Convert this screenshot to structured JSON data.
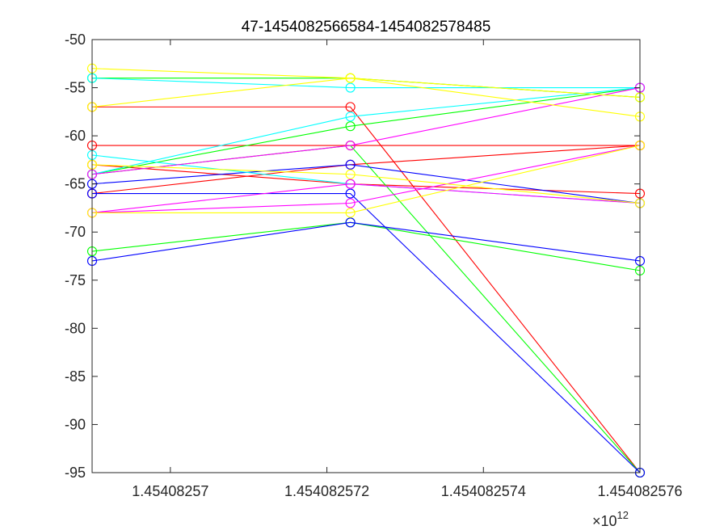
{
  "chart_data": {
    "type": "line",
    "title": "47-1454082566584-1454082578485",
    "xlabel": "",
    "ylabel": "",
    "x_exponent_label": "×10",
    "x_exponent_power": "12",
    "x_tick_values": [
      1.45408257,
      1.454082572,
      1.454082574,
      1.454082576
    ],
    "x_tick_labels": [
      "1.45408257",
      "1.454082572",
      "1.454082574",
      "1.454082576"
    ],
    "xlim": [
      1.454082569,
      1.454082576
    ],
    "y_tick_values": [
      -50,
      -55,
      -60,
      -65,
      -70,
      -75,
      -80,
      -85,
      -90,
      -95
    ],
    "y_tick_labels": [
      "-50",
      "-55",
      "-60",
      "-65",
      "-70",
      "-75",
      "-80",
      "-85",
      "-90",
      "-95"
    ],
    "ylim": [
      -95,
      -50
    ],
    "grid": false,
    "x": [
      1.454082569,
      1.4540825723,
      1.454082576
    ],
    "series": [
      {
        "color": "#ff0000",
        "values": [
          -57,
          -57,
          -95
        ]
      },
      {
        "color": "#ff0000",
        "values": [
          -61,
          -61,
          -61
        ]
      },
      {
        "color": "#ff0000",
        "values": [
          -63,
          -65,
          -66
        ]
      },
      {
        "color": "#ff0000",
        "values": [
          -66,
          -63,
          -61
        ]
      },
      {
        "color": "#00ff00",
        "values": [
          -64,
          -59,
          -55
        ]
      },
      {
        "color": "#00ff00",
        "values": [
          -72,
          -69,
          -74
        ]
      },
      {
        "color": "#00ff00",
        "values": [
          -54,
          -54,
          -56
        ]
      },
      {
        "color": "#00ff00",
        "values": [
          -64,
          -61,
          -95
        ]
      },
      {
        "color": "#0000ff",
        "values": [
          -65,
          -63,
          -67
        ]
      },
      {
        "color": "#0000ff",
        "values": [
          -73,
          -69,
          -73
        ]
      },
      {
        "color": "#0000ff",
        "values": [
          -66,
          -66,
          -95
        ]
      },
      {
        "color": "#00ffff",
        "values": [
          -54,
          -55,
          -55
        ]
      },
      {
        "color": "#00ffff",
        "values": [
          -62,
          -65,
          -67
        ]
      },
      {
        "color": "#00ffff",
        "values": [
          -64,
          -58,
          -55
        ]
      },
      {
        "color": "#ff00ff",
        "values": [
          -64,
          -61,
          -55
        ]
      },
      {
        "color": "#ff00ff",
        "values": [
          -68,
          -67,
          -61
        ]
      },
      {
        "color": "#ff00ff",
        "values": [
          -68,
          -65,
          -67
        ]
      },
      {
        "color": "#ffff00",
        "values": [
          -53,
          -54,
          -58
        ]
      },
      {
        "color": "#ffff00",
        "values": [
          -57,
          -54,
          -56
        ]
      },
      {
        "color": "#ffff00",
        "values": [
          -63,
          -64,
          -67
        ]
      },
      {
        "color": "#ffff00",
        "values": [
          -68,
          -68,
          -61
        ]
      }
    ]
  }
}
